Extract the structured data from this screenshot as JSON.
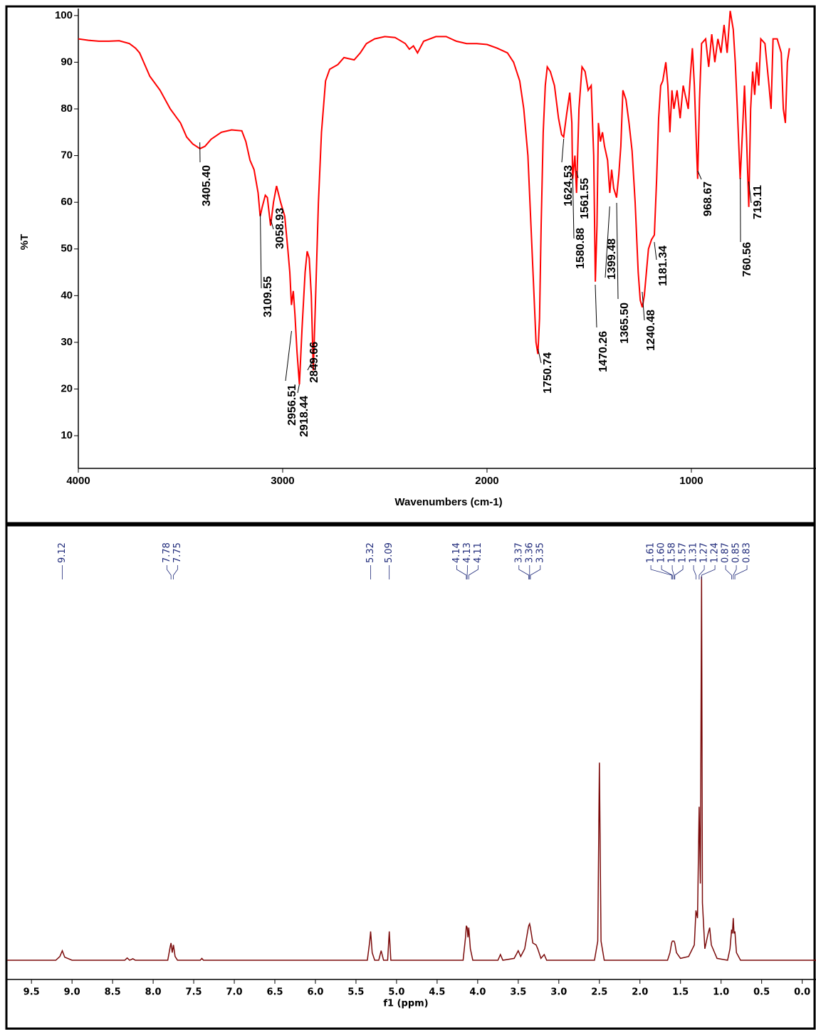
{
  "chart_data": [
    {
      "type": "line",
      "y_label": "%T",
      "x_label": "Wavenumbers (cm-1)",
      "color": "#ff0000",
      "xlim": [
        4000,
        390
      ],
      "ylim": [
        3,
        101.5
      ],
      "xticks": [
        4000,
        3000,
        2000,
        1000
      ],
      "yticks": [
        10,
        20,
        30,
        40,
        50,
        60,
        70,
        80,
        90,
        100
      ],
      "x": [
        4000,
        3950,
        3900,
        3850,
        3800,
        3750,
        3720,
        3700,
        3680,
        3650,
        3600,
        3550,
        3500,
        3470,
        3440,
        3405,
        3380,
        3350,
        3300,
        3250,
        3200,
        3180,
        3160,
        3140,
        3120,
        3110,
        3100,
        3085,
        3075,
        3059,
        3045,
        3030,
        3010,
        2990,
        2975,
        2965,
        2957,
        2948,
        2940,
        2930,
        2918,
        2905,
        2890,
        2880,
        2870,
        2860,
        2850,
        2840,
        2825,
        2810,
        2790,
        2770,
        2730,
        2700,
        2650,
        2620,
        2590,
        2550,
        2500,
        2450,
        2400,
        2380,
        2360,
        2340,
        2310,
        2250,
        2200,
        2150,
        2100,
        2050,
        2000,
        1950,
        1900,
        1870,
        1840,
        1820,
        1800,
        1785,
        1770,
        1760,
        1751,
        1743,
        1735,
        1725,
        1715,
        1705,
        1690,
        1670,
        1650,
        1635,
        1625,
        1610,
        1595,
        1585,
        1581,
        1570,
        1562,
        1550,
        1535,
        1520,
        1505,
        1490,
        1478,
        1470,
        1462,
        1455,
        1445,
        1435,
        1425,
        1410,
        1399,
        1390,
        1380,
        1366,
        1355,
        1345,
        1335,
        1320,
        1305,
        1290,
        1275,
        1260,
        1250,
        1240,
        1230,
        1220,
        1210,
        1195,
        1181,
        1170,
        1160,
        1150,
        1140,
        1125,
        1115,
        1105,
        1095,
        1085,
        1070,
        1055,
        1040,
        1030,
        1015,
        1005,
        995,
        985,
        975,
        969,
        960,
        950,
        930,
        915,
        900,
        885,
        870,
        855,
        840,
        825,
        810,
        795,
        785,
        775,
        761,
        750,
        740,
        730,
        719,
        710,
        700,
        690,
        680,
        670,
        660,
        640,
        620,
        610,
        600,
        580,
        560,
        550,
        540,
        530,
        520
      ],
      "values": [
        95,
        94.7,
        94.5,
        94.5,
        94.6,
        94,
        93,
        92,
        90,
        87,
        84,
        80,
        77,
        74,
        72.5,
        71.5,
        72,
        73.5,
        75,
        75.5,
        75.3,
        73,
        69,
        67,
        62,
        57,
        59,
        61.5,
        61,
        55,
        60,
        63.5,
        60,
        57,
        50,
        45,
        38,
        41,
        36,
        28,
        21,
        33,
        45,
        49.5,
        48,
        40,
        24,
        38,
        60,
        75,
        86,
        88.5,
        89.5,
        91,
        90.5,
        92,
        94,
        95,
        95.5,
        95.3,
        94,
        92.8,
        93.5,
        92,
        94.5,
        95.5,
        95.5,
        94.5,
        94,
        94,
        93.8,
        93,
        92,
        90,
        86,
        80,
        70,
        55,
        40,
        30,
        27.5,
        35,
        55,
        75,
        85,
        89,
        88,
        85,
        78,
        74.5,
        74,
        79,
        83.5,
        77,
        65,
        70,
        62,
        80,
        89,
        88,
        84,
        85,
        70,
        43,
        55,
        77,
        73,
        75,
        72,
        69,
        62,
        67,
        63,
        61,
        66,
        72,
        84,
        82,
        77,
        71,
        60,
        45,
        39,
        37.5,
        40,
        45,
        50,
        52,
        53,
        65,
        78,
        85,
        86,
        90,
        85,
        75,
        84,
        80,
        84,
        78,
        85,
        83,
        80,
        87,
        93,
        85,
        72,
        65,
        82,
        94,
        95,
        89,
        96,
        90,
        95,
        92,
        98,
        92,
        101,
        97,
        90,
        80,
        65,
        75,
        85,
        74,
        59,
        80,
        88,
        83,
        90,
        85,
        95,
        94,
        85,
        80,
        95,
        95,
        92,
        80,
        77,
        90,
        93
      ],
      "peak_labels": [
        {
          "value": 3405.4,
          "label": "3405.40"
        },
        3109.55,
        3058.93,
        2956.51,
        2918.44,
        2849.66,
        1750.74,
        1624.53,
        1580.88,
        1561.55,
        1470.26,
        1399.48,
        {
          "value": 1365.5,
          "label": "1365.50"
        },
        1240.48,
        1181.34,
        968.67,
        760.56,
        719.11
      ]
    },
    {
      "type": "line",
      "x_label": "f1 (ppm)",
      "color": "#7b0a0a",
      "xlim": [
        9.8,
        -0.17
      ],
      "ylim": [
        -0.05,
        1
      ],
      "xticks": [
        9.5,
        {
          "value": 9,
          "label": "9.0"
        },
        8.5,
        {
          "value": 8,
          "label": "8.0"
        },
        7.5,
        {
          "value": 7,
          "label": "7.0"
        },
        6.5,
        {
          "value": 6,
          "label": "6.0"
        },
        5.5,
        {
          "value": 5,
          "label": "5.0"
        },
        4.5,
        {
          "value": 4,
          "label": "4.0"
        },
        3.5,
        {
          "value": 3,
          "label": "3.0"
        },
        2.5,
        {
          "value": 2,
          "label": "2.0"
        },
        1.5,
        {
          "value": 1,
          "label": "1.0"
        },
        0.5,
        {
          "value": 0,
          "label": "0.0"
        }
      ],
      "x": [
        9.8,
        9.2,
        9.15,
        9.12,
        9.09,
        9.0,
        8.35,
        8.32,
        8.29,
        8.25,
        8.22,
        7.82,
        7.79,
        7.78,
        7.765,
        7.75,
        7.73,
        7.7,
        7.42,
        7.4,
        7.38,
        5.36,
        5.33,
        5.32,
        5.3,
        5.27,
        5.22,
        5.19,
        5.16,
        5.11,
        5.09,
        5.07,
        4.18,
        4.15,
        4.14,
        4.13,
        4.12,
        4.11,
        4.09,
        4.06,
        3.75,
        3.72,
        3.69,
        3.55,
        3.5,
        3.47,
        3.42,
        3.38,
        3.37,
        3.36,
        3.35,
        3.32,
        3.28,
        3.26,
        3.22,
        3.18,
        3.15,
        2.56,
        2.52,
        2.5,
        2.48,
        2.44,
        1.66,
        1.63,
        1.61,
        1.6,
        1.58,
        1.57,
        1.55,
        1.5,
        1.4,
        1.33,
        1.31,
        1.29,
        1.27,
        1.255,
        1.24,
        1.23,
        1.2,
        1.16,
        1.14,
        1.12,
        1.05,
        0.92,
        0.89,
        0.87,
        0.86,
        0.85,
        0.84,
        0.83,
        0.81,
        0.76,
        0.5,
        -0.17
      ],
      "values": [
        0,
        0,
        0.01,
        0.025,
        0.008,
        0,
        0,
        0.006,
        0,
        0.004,
        0,
        0,
        0.035,
        0.045,
        0.02,
        0.04,
        0.01,
        0,
        0,
        0.005,
        0,
        0,
        0.05,
        0.075,
        0.02,
        0,
        0,
        0.025,
        0,
        0,
        0.075,
        0,
        0,
        0.06,
        0.09,
        0.085,
        0.06,
        0.085,
        0.03,
        0,
        0,
        0.015,
        0,
        0.005,
        0.025,
        0.01,
        0.03,
        0.08,
        0.09,
        0.095,
        0.085,
        0.045,
        0.04,
        0.03,
        0.005,
        0.015,
        0,
        0,
        0.05,
        0.515,
        0.05,
        0,
        0,
        0.02,
        0.045,
        0.05,
        0.05,
        0.045,
        0.02,
        0.005,
        0.01,
        0.04,
        0.13,
        0.11,
        0.4,
        0.2,
        1,
        0.15,
        0.03,
        0.07,
        0.085,
        0.04,
        0.005,
        0,
        0.03,
        0.08,
        0.07,
        0.11,
        0.07,
        0.075,
        0.02,
        0,
        0,
        0
      ],
      "peak_labels": [
        9.12,
        7.78,
        7.75,
        5.32,
        5.09,
        4.14,
        4.13,
        4.11,
        3.37,
        3.36,
        3.35,
        1.61,
        {
          "value": 1.6,
          "label": "1.60"
        },
        1.58,
        1.57,
        1.31,
        1.27,
        1.24,
        0.87,
        0.85,
        0.83
      ]
    }
  ]
}
